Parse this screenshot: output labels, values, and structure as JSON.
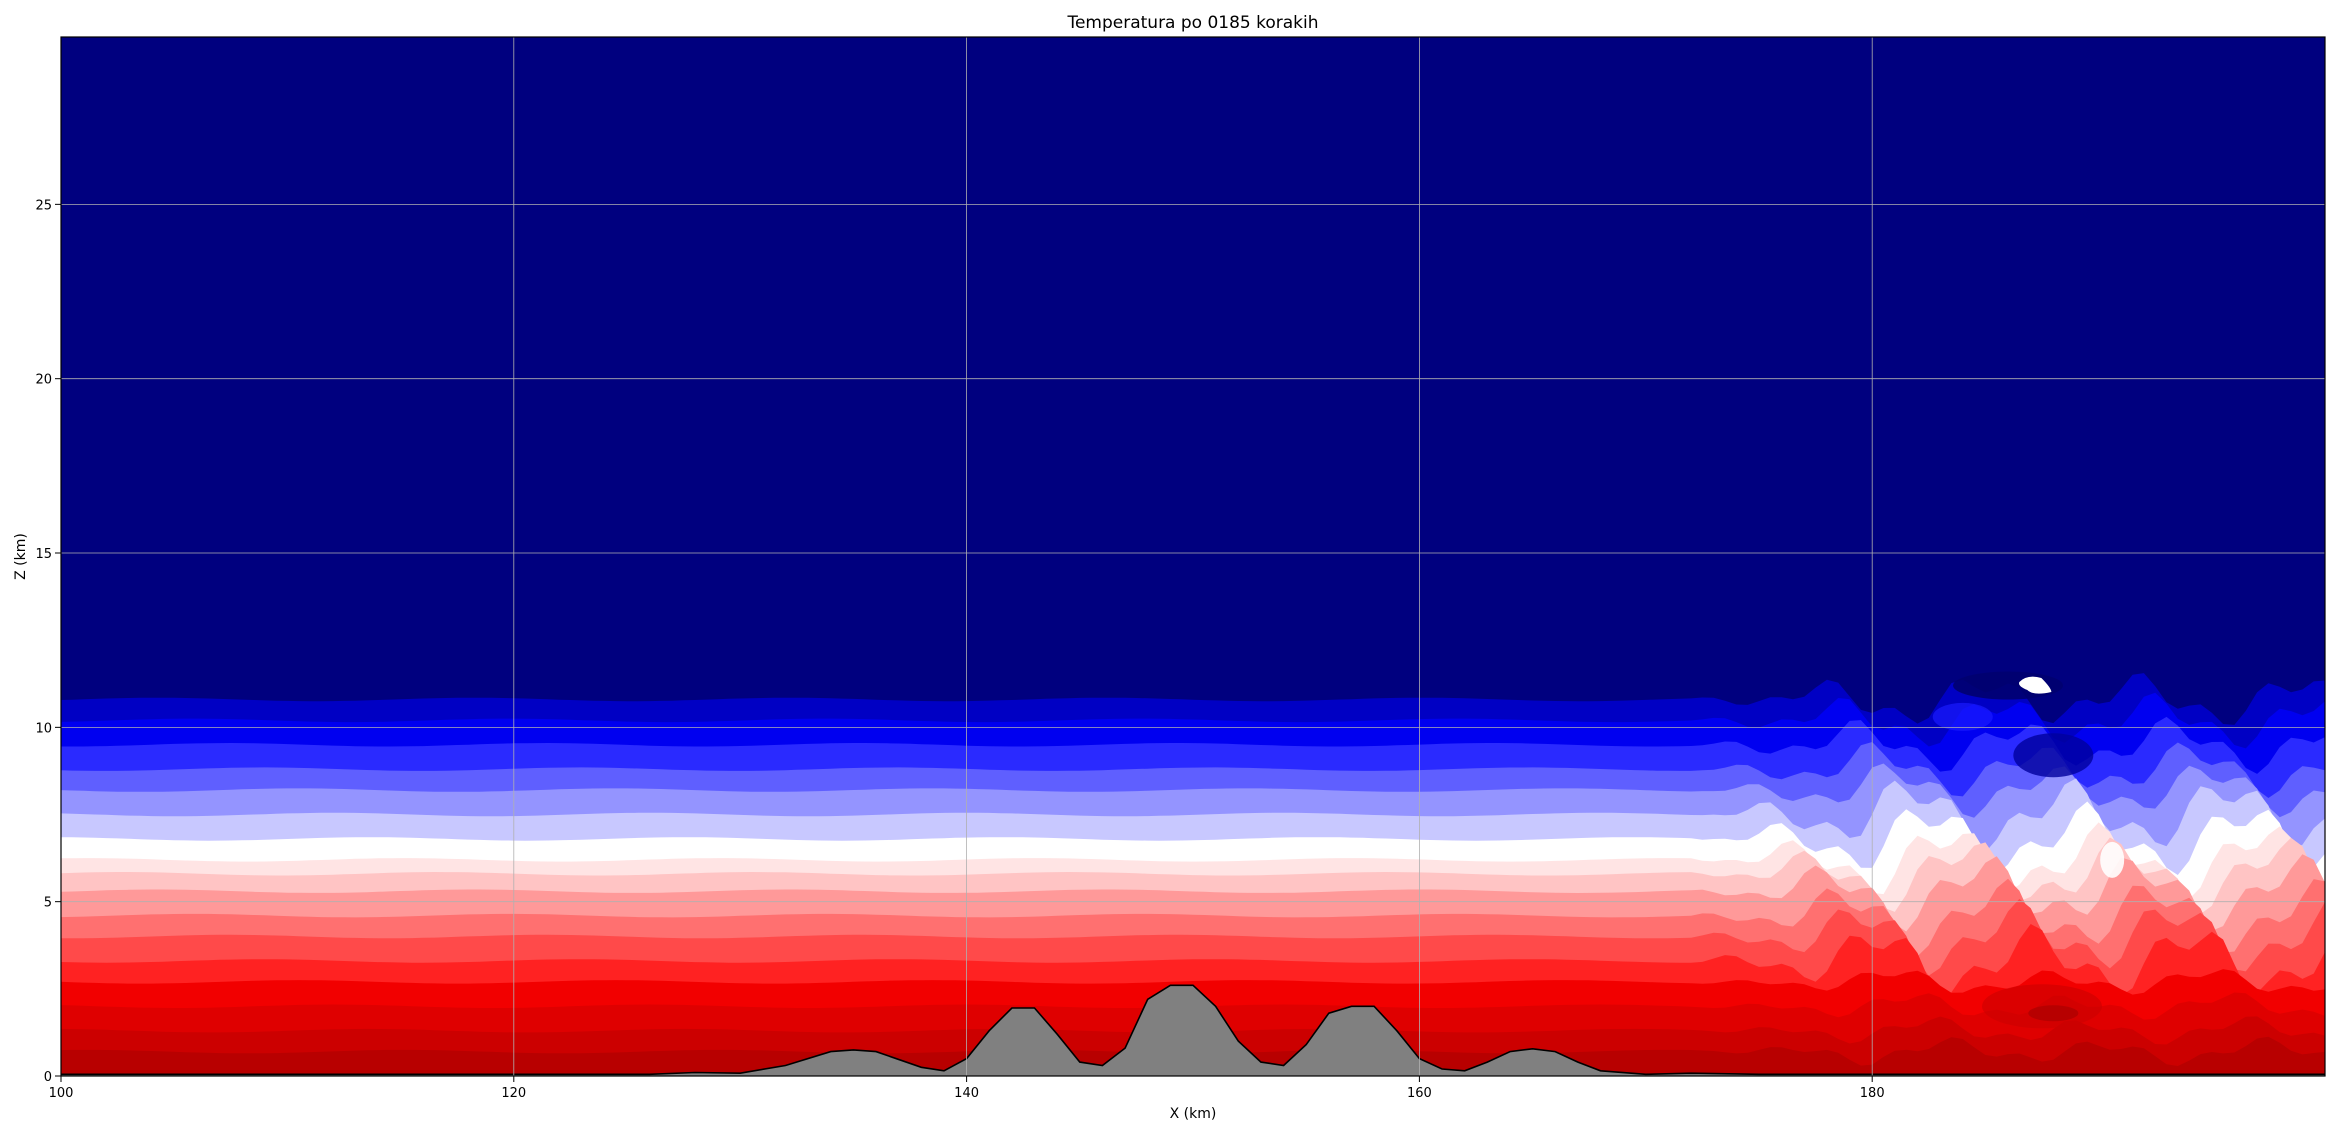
{
  "chart_data": {
    "type": "heatmap",
    "title": "Temperatura po 0185 korakih",
    "xlabel": "X (km)",
    "ylabel": "Z (km)",
    "xlim": [
      100,
      200
    ],
    "ylim": [
      0,
      29.8
    ],
    "x_ticks": [
      100,
      120,
      140,
      160,
      180
    ],
    "y_ticks": [
      0,
      5,
      10,
      15,
      20,
      25
    ],
    "grid": true,
    "colormap": "seismic",
    "contour_bands": [
      {
        "z_bottom": 0.0,
        "z_top": 0.7,
        "color": "#b80000"
      },
      {
        "z_bottom": 0.7,
        "z_top": 1.3,
        "color": "#cc0000"
      },
      {
        "z_bottom": 1.3,
        "z_top": 2.0,
        "color": "#df0000"
      },
      {
        "z_bottom": 2.0,
        "z_top": 2.7,
        "color": "#f20000"
      },
      {
        "z_bottom": 2.7,
        "z_top": 3.3,
        "color": "#ff2222"
      },
      {
        "z_bottom": 3.3,
        "z_top": 4.0,
        "color": "#ff4a4a"
      },
      {
        "z_bottom": 4.0,
        "z_top": 4.6,
        "color": "#ff7070"
      },
      {
        "z_bottom": 4.6,
        "z_top": 5.3,
        "color": "#ff9999"
      },
      {
        "z_bottom": 5.3,
        "z_top": 5.8,
        "color": "#ffc4c4"
      },
      {
        "z_bottom": 5.8,
        "z_top": 6.2,
        "color": "#ffe4e4"
      },
      {
        "z_bottom": 6.2,
        "z_top": 6.8,
        "color": "#ffffff"
      },
      {
        "z_bottom": 6.8,
        "z_top": 7.5,
        "color": "#c8c8ff"
      },
      {
        "z_bottom": 7.5,
        "z_top": 8.2,
        "color": "#9494ff"
      },
      {
        "z_bottom": 8.2,
        "z_top": 8.8,
        "color": "#5f5fff"
      },
      {
        "z_bottom": 8.8,
        "z_top": 9.5,
        "color": "#2a2aff"
      },
      {
        "z_bottom": 9.5,
        "z_top": 10.2,
        "color": "#0000f0"
      },
      {
        "z_bottom": 10.2,
        "z_top": 10.8,
        "color": "#0000c4"
      },
      {
        "z_bottom": 10.8,
        "z_top": 29.8,
        "color": "#00007f"
      }
    ],
    "terrain": {
      "color": "#808080",
      "x": [
        100,
        126,
        128,
        130,
        132,
        134,
        135,
        136,
        138,
        139,
        140,
        141,
        142,
        143,
        144,
        145,
        146,
        147,
        148,
        149,
        150,
        151,
        152,
        153,
        154,
        155,
        156,
        157,
        158,
        159,
        160,
        161,
        162,
        163,
        164,
        165,
        166,
        167,
        168,
        170,
        172,
        175,
        200
      ],
      "z": [
        0.05,
        0.05,
        0.1,
        0.08,
        0.3,
        0.7,
        0.75,
        0.7,
        0.25,
        0.15,
        0.5,
        1.3,
        1.95,
        1.95,
        1.2,
        0.4,
        0.3,
        0.8,
        2.2,
        2.6,
        2.6,
        2.0,
        1.0,
        0.4,
        0.3,
        0.9,
        1.8,
        2.0,
        2.0,
        1.3,
        0.5,
        0.2,
        0.15,
        0.4,
        0.7,
        0.78,
        0.7,
        0.4,
        0.15,
        0.05,
        0.08,
        0.05,
        0.05
      ]
    }
  }
}
